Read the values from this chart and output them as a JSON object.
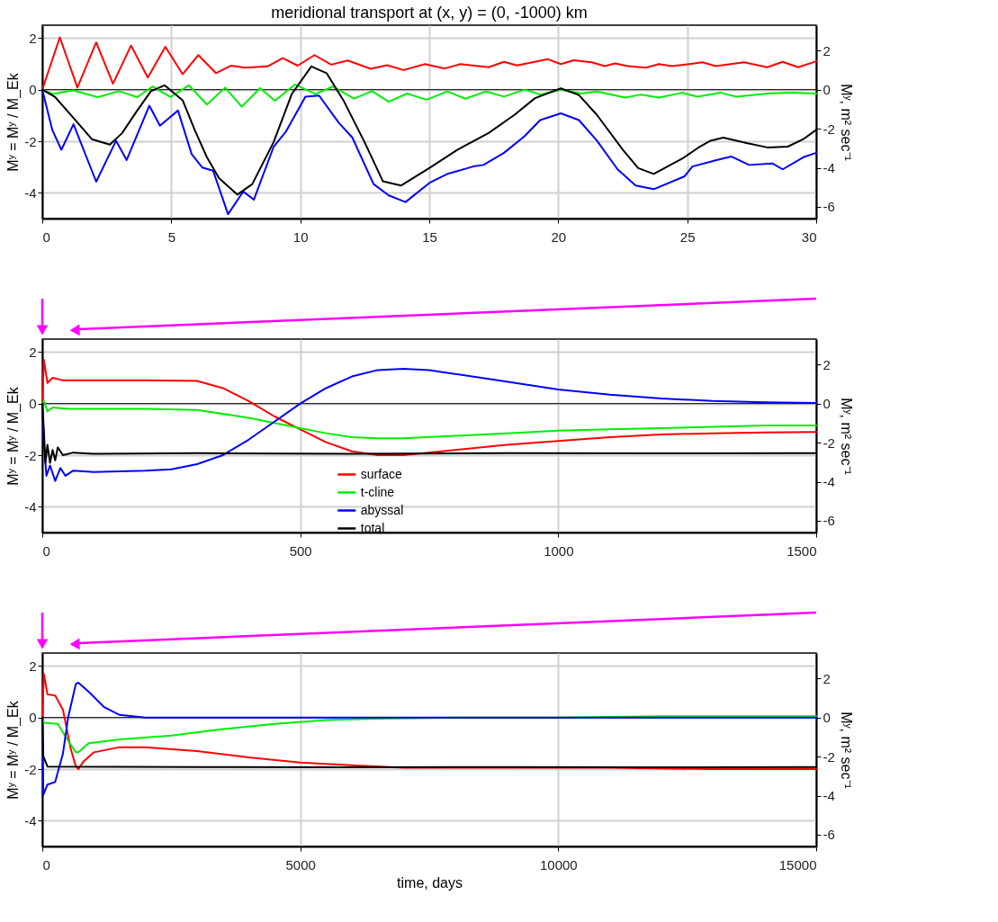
{
  "chart_data": [
    {
      "type": "line",
      "title": "meridional transport at (x, y) = (0, -1000) km",
      "ylabel": "Mʸ = Mʸ / M_Ek",
      "y2label": "Mʸ, m² sec⁻¹",
      "xlim": [
        0,
        30
      ],
      "xticks": [
        0,
        5,
        10,
        15,
        20,
        25,
        30
      ],
      "ylim": [
        -5,
        2.5
      ],
      "yticks": [
        -4,
        -2,
        0,
        2
      ],
      "y2lim": [
        -6.6,
        3.3
      ],
      "y2ticks": [
        -6,
        -4,
        -2,
        0,
        2
      ],
      "grid": true,
      "legend": false,
      "marker": "none",
      "line_style": "solid",
      "ref_lines": [
        {
          "axis": "y2",
          "value": 0,
          "color": "#000000"
        }
      ],
      "series": [
        {
          "color": "#ff0000",
          "x": [
            0,
            0.68,
            1.36,
            2.09,
            2.74,
            3.44,
            4.09,
            4.77,
            5.44,
            6.05,
            6.73,
            7.32,
            7.85,
            8.73,
            9.32,
            9.9,
            10.55,
            11.2,
            11.84,
            12.73,
            13.37,
            14.0,
            14.84,
            15.6,
            16.2,
            17.3,
            17.9,
            18.4,
            19.6,
            20.1,
            20.6,
            21.3,
            21.8,
            22.2,
            22.7,
            23.4,
            23.9,
            24.4,
            25.6,
            26.1,
            27.2,
            28.1,
            28.7,
            29.3,
            30
          ],
          "values": [
            0,
            2.03,
            0.08,
            1.83,
            0.23,
            1.71,
            0.47,
            1.66,
            0.6,
            1.34,
            0.64,
            0.93,
            0.85,
            0.9,
            1.22,
            0.93,
            1.34,
            0.97,
            1.13,
            0.81,
            0.95,
            0.76,
            0.99,
            0.82,
            0.99,
            0.87,
            1.08,
            0.94,
            1.18,
            0.99,
            1.14,
            1.06,
            0.91,
            1.02,
            0.91,
            0.85,
            0.99,
            0.91,
            1.06,
            0.91,
            1.06,
            0.87,
            1.08,
            0.87,
            1.1
          ]
        },
        {
          "color": "#00ee00",
          "x": [
            0,
            0.4,
            1.2,
            2.15,
            2.97,
            3.68,
            4.27,
            4.97,
            5.68,
            6.38,
            7.09,
            7.73,
            8.44,
            9.02,
            9.79,
            10.6,
            11.26,
            12.08,
            12.78,
            13.43,
            14.14,
            14.9,
            15.7,
            16.4,
            17.2,
            17.9,
            18.7,
            19.3,
            20.1,
            20.9,
            21.5,
            22.6,
            23.2,
            23.9,
            24.8,
            25.4,
            26.3,
            26.9,
            28.1,
            29,
            30
          ],
          "values": [
            0,
            -0.17,
            -0.03,
            -0.29,
            -0.06,
            -0.29,
            0.12,
            -0.29,
            0.17,
            -0.58,
            0.08,
            -0.66,
            0.06,
            -0.43,
            0.2,
            -0.17,
            0.12,
            -0.35,
            -0.06,
            -0.47,
            -0.15,
            -0.39,
            -0.07,
            -0.35,
            -0.07,
            -0.27,
            0,
            -0.19,
            0,
            -0.15,
            -0.07,
            -0.31,
            -0.19,
            -0.31,
            -0.12,
            -0.27,
            -0.12,
            -0.27,
            -0.15,
            -0.12,
            -0.15
          ]
        },
        {
          "color": "#0000ff",
          "x": [
            0,
            0.39,
            0.74,
            1.21,
            2.09,
            2.86,
            3.27,
            4.15,
            4.56,
            5.26,
            5.79,
            6.2,
            6.62,
            7.2,
            7.79,
            8.2,
            8.97,
            9.44,
            10.2,
            10.73,
            11.49,
            12.02,
            12.84,
            13.43,
            14.08,
            15,
            15.7,
            16.7,
            17.1,
            17.9,
            18.7,
            19.3,
            20.1,
            20.8,
            21.5,
            22.3,
            23,
            23.7,
            24.9,
            25.2,
            26.1,
            26.7,
            27.4,
            28.3,
            28.7,
            29.5,
            30
          ],
          "values": [
            0,
            -1.57,
            -2.33,
            -1.34,
            -3.57,
            -1.98,
            -2.73,
            -0.62,
            -1.4,
            -0.81,
            -2.5,
            -3.02,
            -3.14,
            -4.83,
            -3.95,
            -4.27,
            -2.21,
            -1.63,
            -0.27,
            -0.23,
            -1.28,
            -1.86,
            -3.66,
            -4.1,
            -4.36,
            -3.62,
            -3.27,
            -2.98,
            -2.92,
            -2.45,
            -1.8,
            -1.18,
            -0.92,
            -1.18,
            -1.98,
            -3.09,
            -3.72,
            -3.86,
            -3.36,
            -2.98,
            -2.74,
            -2.59,
            -2.92,
            -2.86,
            -3.09,
            -2.62,
            -2.45
          ]
        },
        {
          "color": "#000000",
          "x": [
            0,
            0.5,
            1.21,
            1.92,
            2.62,
            3.09,
            3.68,
            4.21,
            4.74,
            5.44,
            5.91,
            6.38,
            6.85,
            7.56,
            8.14,
            8.97,
            9.67,
            10.43,
            11.02,
            11.67,
            12.49,
            13.2,
            13.9,
            15,
            16.1,
            17.3,
            18.3,
            19.1,
            20.1,
            20.8,
            21.5,
            22.5,
            23.1,
            23.7,
            24.8,
            25.4,
            25.9,
            26.4,
            27.3,
            28.1,
            28.9,
            29.5,
            30
          ],
          "values": [
            0,
            -0.29,
            -1.1,
            -1.92,
            -2.13,
            -1.69,
            -0.81,
            -0.06,
            0.17,
            -0.41,
            -1.57,
            -2.62,
            -3.43,
            -4.07,
            -3.66,
            -2.03,
            -0.17,
            0.9,
            0.64,
            -0.41,
            -2.03,
            -3.55,
            -3.72,
            -3.04,
            -2.33,
            -1.68,
            -0.98,
            -0.33,
            0.05,
            -0.21,
            -0.98,
            -2.33,
            -3.04,
            -3.27,
            -2.68,
            -2.27,
            -1.98,
            -1.86,
            -2.07,
            -2.24,
            -2.21,
            -1.92,
            -1.56
          ]
        }
      ]
    },
    {
      "type": "line",
      "ylabel": "Mʸ = Mʸ / M_Ek",
      "y2label": "Mʸ, m² sec⁻¹",
      "xlim": [
        0,
        1500
      ],
      "xticks": [
        0,
        500,
        1000,
        1500
      ],
      "ylim": [
        -5,
        2.5
      ],
      "yticks": [
        -4,
        -2,
        0,
        2
      ],
      "y2lim": [
        -6.6,
        3.3
      ],
      "y2ticks": [
        -6,
        -4,
        -2,
        0,
        2
      ],
      "grid": true,
      "legend": "bottom",
      "marker": "none",
      "line_style": "solid",
      "ref_lines": [
        {
          "axis": "y2",
          "value": 0,
          "color": "#000000"
        }
      ],
      "series": [
        {
          "name": "surface",
          "color": "#ff0000",
          "x": [
            0,
            3,
            10,
            20,
            40,
            100,
            200,
            300,
            350,
            400,
            450,
            500,
            550,
            600,
            650,
            700,
            800,
            900,
            1000,
            1100,
            1200,
            1300,
            1400,
            1500
          ],
          "values": [
            0,
            1.7,
            0.8,
            1.0,
            0.9,
            0.9,
            0.9,
            0.88,
            0.6,
            0.1,
            -0.5,
            -1.0,
            -1.5,
            -1.85,
            -2.0,
            -2.0,
            -1.8,
            -1.6,
            -1.45,
            -1.3,
            -1.2,
            -1.15,
            -1.12,
            -1.1
          ]
        },
        {
          "name": "t-cline",
          "color": "#00ee00",
          "x": [
            0,
            3,
            10,
            20,
            50,
            100,
            200,
            300,
            400,
            500,
            550,
            600,
            650,
            700,
            800,
            900,
            1000,
            1100,
            1200,
            1300,
            1400,
            1500
          ],
          "values": [
            0,
            0.1,
            -0.3,
            -0.15,
            -0.2,
            -0.2,
            -0.2,
            -0.25,
            -0.55,
            -0.95,
            -1.15,
            -1.3,
            -1.35,
            -1.35,
            -1.25,
            -1.15,
            -1.05,
            -1.0,
            -0.95,
            -0.9,
            -0.85,
            -0.85
          ]
        },
        {
          "name": "abyssal",
          "color": "#0000ff",
          "x": [
            0,
            3,
            8,
            15,
            25,
            35,
            45,
            60,
            100,
            200,
            250,
            300,
            350,
            400,
            450,
            500,
            550,
            600,
            650,
            700,
            750,
            800,
            900,
            1000,
            1100,
            1200,
            1300,
            1400,
            1500
          ],
          "values": [
            0,
            -1.5,
            -2.8,
            -2.4,
            -3.0,
            -2.5,
            -2.8,
            -2.6,
            -2.65,
            -2.6,
            -2.55,
            -2.35,
            -2.0,
            -1.4,
            -0.7,
            0.0,
            0.6,
            1.05,
            1.3,
            1.35,
            1.3,
            1.15,
            0.85,
            0.55,
            0.35,
            0.2,
            0.1,
            0.05,
            0.02
          ]
        },
        {
          "name": "total",
          "color": "#000000",
          "x": [
            0,
            3,
            6,
            10,
            15,
            20,
            25,
            30,
            40,
            60,
            100,
            300,
            600,
            900,
            1200,
            1500
          ],
          "values": [
            0,
            -1.0,
            -2.3,
            -1.6,
            -2.3,
            -1.8,
            -2.2,
            -1.7,
            -2.0,
            -1.9,
            -1.95,
            -1.92,
            -1.95,
            -1.92,
            -1.93,
            -1.92
          ]
        }
      ]
    },
    {
      "type": "line",
      "ylabel": "Mʸ = Mʸ / M_Ek",
      "y2label": "Mʸ, m² sec⁻¹",
      "xlabel": "time, days",
      "xlim": [
        0,
        15000
      ],
      "xticks": [
        0,
        5000,
        10000,
        15000
      ],
      "ylim": [
        -5,
        2.5
      ],
      "yticks": [
        -4,
        -2,
        0,
        2
      ],
      "y2lim": [
        -6.6,
        3.3
      ],
      "y2ticks": [
        -6,
        -4,
        -2,
        0,
        2
      ],
      "grid": true,
      "legend": false,
      "marker": "none",
      "line_style": "solid",
      "ref_lines": [
        {
          "axis": "y2",
          "value": 0,
          "color": "#000000"
        }
      ],
      "series": [
        {
          "color": "#ff0000",
          "x": [
            0,
            30,
            100,
            250,
            400,
            550,
            650,
            700,
            800,
            1000,
            1500,
            2000,
            3000,
            4000,
            5000,
            6000,
            7000,
            9000,
            11000,
            13000,
            15000
          ],
          "values": [
            0,
            1.7,
            0.9,
            0.85,
            0.3,
            -1.2,
            -1.9,
            -2.0,
            -1.7,
            -1.35,
            -1.15,
            -1.15,
            -1.3,
            -1.55,
            -1.75,
            -1.85,
            -1.95,
            -1.95,
            -1.95,
            -2.0,
            -2.0
          ]
        },
        {
          "color": "#00ee00",
          "x": [
            0,
            30,
            300,
            500,
            650,
            700,
            900,
            1500,
            2500,
            3500,
            4500,
            5500,
            6500,
            8000,
            10000,
            12000,
            15000
          ],
          "values": [
            0,
            -0.2,
            -0.25,
            -0.9,
            -1.35,
            -1.35,
            -1.0,
            -0.85,
            -0.7,
            -0.45,
            -0.25,
            -0.1,
            -0.05,
            0,
            0,
            0.05,
            0.05
          ]
        },
        {
          "color": "#0000ff",
          "x": [
            0,
            20,
            100,
            250,
            400,
            500,
            650,
            700,
            900,
            1200,
            1500,
            2000,
            5000,
            10000,
            15000
          ],
          "values": [
            0,
            -3.0,
            -2.6,
            -2.5,
            -1.4,
            0.0,
            1.3,
            1.35,
            1.0,
            0.4,
            0.1,
            0,
            0,
            0,
            0
          ]
        },
        {
          "color": "#000000",
          "x": [
            0,
            20,
            100,
            3000,
            6000,
            9000,
            12000,
            15000
          ],
          "values": [
            0,
            -1.5,
            -1.9,
            -1.92,
            -1.93,
            -1.92,
            -1.93,
            -1.92
          ]
        }
      ]
    }
  ]
}
